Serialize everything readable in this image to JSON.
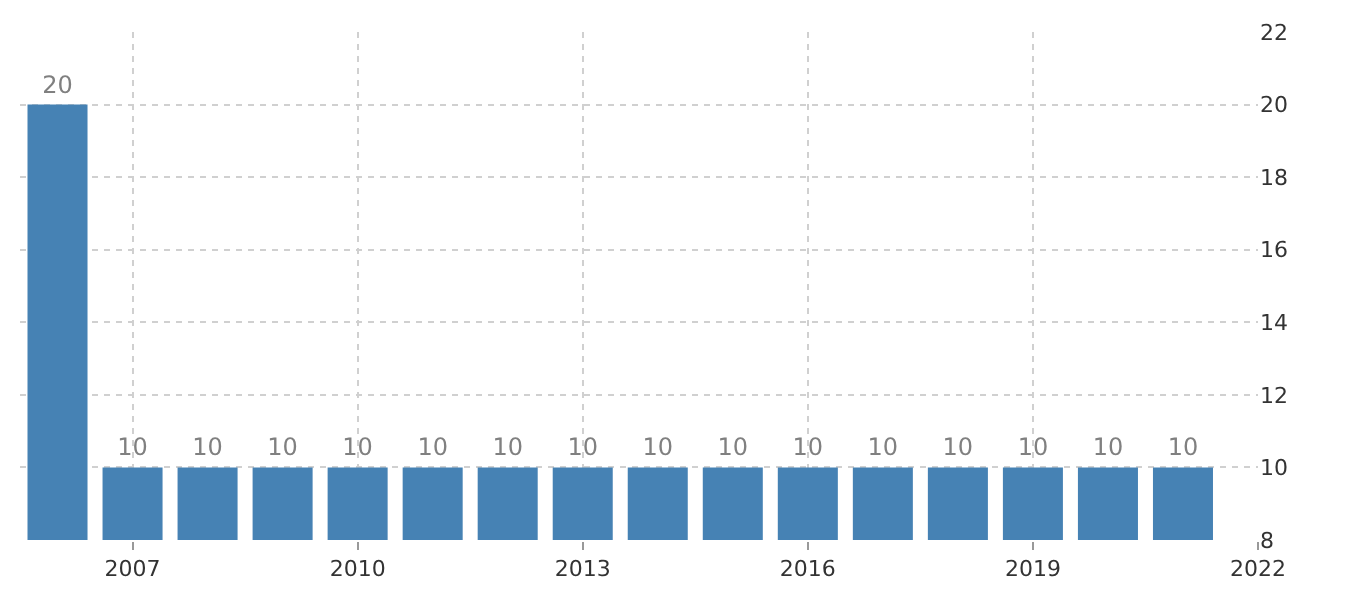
{
  "chart_data": {
    "type": "bar",
    "x": [
      2006,
      2007,
      2008,
      2009,
      2010,
      2011,
      2012,
      2013,
      2014,
      2015,
      2016,
      2017,
      2018,
      2019,
      2020,
      2021
    ],
    "values": [
      20,
      10,
      10,
      10,
      10,
      10,
      10,
      10,
      10,
      10,
      10,
      10,
      10,
      10,
      10,
      10
    ],
    "color": "#4682b4",
    "data_labels": true,
    "xlim": [
      2005.5,
      2022
    ],
    "xticks": [
      2007,
      2010,
      2013,
      2016,
      2019,
      2022
    ],
    "ylim": [
      8,
      22
    ],
    "yticks": [
      8,
      10,
      12,
      14,
      16,
      18,
      20,
      22
    ],
    "grid": true
  }
}
